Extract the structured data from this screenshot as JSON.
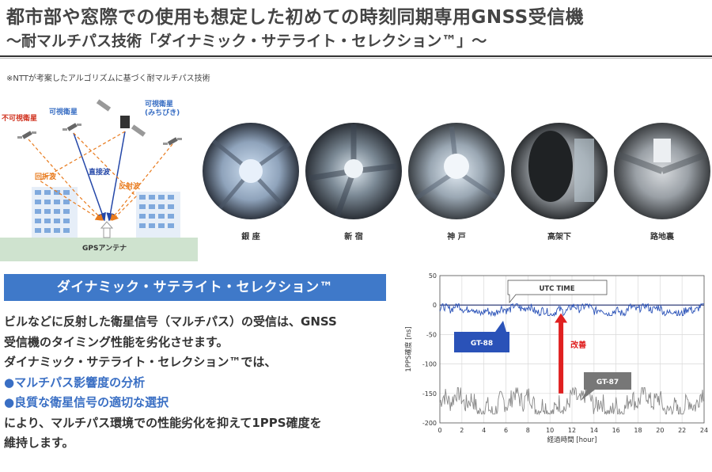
{
  "header": {
    "title": "都市部や窓際での使用も想定した初めての時刻同期専用GNSS受信機",
    "subtitle": "～耐マルチパス技術「ダイナミック・サテライト・セレクション™」～"
  },
  "note": "※NTTが考案したアルゴリズムに基づく耐マルチパス技術",
  "illustration": {
    "invisible_sat": "不可視衛星",
    "visible_sat": "可視衛星",
    "visible_sat_michibiki_1": "可視衛星",
    "visible_sat_michibiki_2": "(みちびき)",
    "refracted": "回折波",
    "direct": "直接波",
    "reflected": "反射波",
    "antenna": "GPSアンテナ",
    "colors": {
      "direct": "#2447a8",
      "multipath": "#e87a1c",
      "invisible_label": "#d0321f",
      "visible_label": "#3a6fc4"
    }
  },
  "fisheye_photos": [
    {
      "label": "銀 座"
    },
    {
      "label": "新 宿"
    },
    {
      "label": "神 戸"
    },
    {
      "label": "高架下"
    },
    {
      "label": "路地裏"
    }
  ],
  "banner": {
    "text": "ダイナミック・サテライト・セレクション™",
    "color": "#3f79c9"
  },
  "body": {
    "line1": "ビルなどに反射した衛星信号（マルチパス）の受信は、GNSS",
    "line2": "受信機のタイミング性能を劣化させます。",
    "line3": "ダイナミック・サテライト・セレクション™では、",
    "bullet1": "●マルチパス影響度の分析",
    "bullet2": "●良質な衛星信号の適切な選択",
    "line4": "により、マルチパス環境での性能劣化を抑えて1PPS確度を",
    "line5": "維持します。"
  },
  "chart_data": {
    "type": "line",
    "xlabel": "経過時間 [hour]",
    "ylabel": "1PPS確度 [ns]",
    "xlim": [
      0,
      24
    ],
    "ylim": [
      -200,
      50
    ],
    "xticks": [
      0,
      2,
      4,
      6,
      8,
      10,
      12,
      14,
      16,
      18,
      20,
      22,
      24
    ],
    "yticks": [
      50,
      0,
      -50,
      -100,
      -150,
      -200
    ],
    "grid": true,
    "reference_line": {
      "label": "UTC TIME",
      "y": 0
    },
    "series": [
      {
        "name": "GT-88",
        "color": "#2a52b8",
        "mean": -8,
        "range": [
          -18,
          2
        ]
      },
      {
        "name": "GT-87",
        "color": "#888888",
        "mean": -167,
        "range": [
          -185,
          -140
        ]
      }
    ],
    "annotation": {
      "text": "改善",
      "color": "#e02020"
    }
  }
}
